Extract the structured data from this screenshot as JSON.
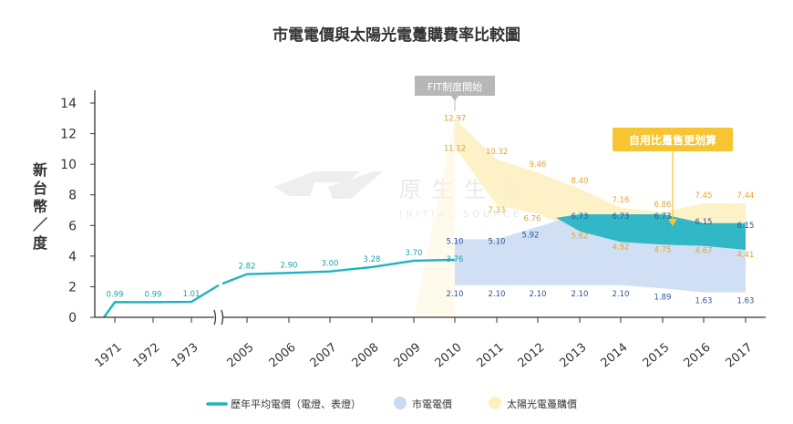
{
  "chart_data": {
    "type": "area",
    "title": "市電電價與太陽光電躉購費率比較圖",
    "ylabel": "新台幣／度",
    "ylim": [
      0,
      14
    ],
    "yticks": [
      0,
      2,
      4,
      6,
      8,
      10,
      12,
      14
    ],
    "grid": false,
    "legend_placement": "bottom",
    "categories": [
      "1971",
      "1972",
      "1973",
      "2005",
      "2006",
      "2007",
      "2008",
      "2009",
      "2010",
      "2011",
      "2012",
      "2013",
      "2014",
      "2015",
      "2016",
      "2017"
    ],
    "series": [
      {
        "name": "歷年平均電價（電燈、表燈）",
        "type": "line",
        "color": "#1fb3c0",
        "x": [
          "1971",
          "1972",
          "1973",
          "2005",
          "2006",
          "2007",
          "2008",
          "2009",
          "2010",
          "2013",
          "2014",
          "2015",
          "2016",
          "2017"
        ],
        "values": [
          0.99,
          0.99,
          1.01,
          2.82,
          2.9,
          3.0,
          3.28,
          3.7,
          3.76,
          6.73,
          6.73,
          6.73,
          6.15,
          6.15
        ],
        "labels": [
          "0.99",
          "0.99",
          "1.01",
          "2.82",
          "2.90",
          "3.00",
          "3.28",
          "3.70",
          "3.76",
          "6.73",
          "6.73",
          "6.73",
          "6.15",
          "6.15"
        ]
      },
      {
        "name": "市電電價",
        "type": "band",
        "color": "#c9d9f3",
        "x": [
          "2010",
          "2011",
          "2012",
          "2013",
          "2014",
          "2015",
          "2016",
          "2017"
        ],
        "low": [
          2.1,
          2.1,
          2.1,
          2.1,
          2.1,
          1.89,
          1.63,
          1.63
        ],
        "high": [
          5.1,
          5.1,
          5.92,
          6.73,
          6.73,
          6.73,
          6.15,
          6.15
        ],
        "low_labels": [
          "2.10",
          "2.10",
          "2.10",
          "2.10",
          "2.10",
          "1.89",
          "1.63",
          "1.63"
        ],
        "high_labels": [
          "5.10",
          "5.10",
          "5.92",
          "6.73",
          "6.73",
          "6.73",
          "6.15",
          "6.15"
        ]
      },
      {
        "name": "太陽光電躉購價",
        "type": "band",
        "color": "#fdf0c2",
        "x": [
          "2010",
          "2011",
          "2012",
          "2013",
          "2014",
          "2015",
          "2016",
          "2017"
        ],
        "high": [
          12.97,
          10.32,
          9.46,
          8.4,
          7.16,
          6.86,
          7.45,
          7.44
        ],
        "low": [
          11.12,
          7.33,
          6.76,
          5.62,
          4.92,
          4.75,
          4.67,
          4.41
        ],
        "high_labels": [
          "12.97",
          "10.32",
          "9.46",
          "8.40",
          "7.16",
          "6.86",
          "7.45",
          "7.44"
        ],
        "low_labels": [
          "11.12",
          "7.33",
          "6.76",
          "5.62",
          "4.92",
          "4.75",
          "4.67",
          "4.41"
        ]
      }
    ],
    "annotations": [
      {
        "text": "FIT制度開始",
        "x": "2010",
        "style": "gray-box"
      },
      {
        "text": "自用比躉售更划算",
        "x": "2015",
        "style": "yellow-box"
      }
    ],
    "watermark": {
      "text": "原 生 生 活",
      "subtext": "INITIAL SOURCE"
    }
  },
  "legend": [
    {
      "label": "歷年平均電價（電燈、表燈）",
      "color": "#1fb3c0",
      "shape": "line"
    },
    {
      "label": "市電電價",
      "color": "#c9d9f3",
      "shape": "circle"
    },
    {
      "label": "太陽光電躉購價",
      "color": "#fdf0c2",
      "shape": "circle"
    }
  ],
  "colors": {
    "teal": "#1fb3c0",
    "label_teal": "#1fa3ad",
    "label_blue": "#2f5596",
    "label_gold": "#e0a629",
    "callout_yellow": "#f7c531",
    "callout_gray": "#b7b7b7",
    "axis": "#333333"
  }
}
